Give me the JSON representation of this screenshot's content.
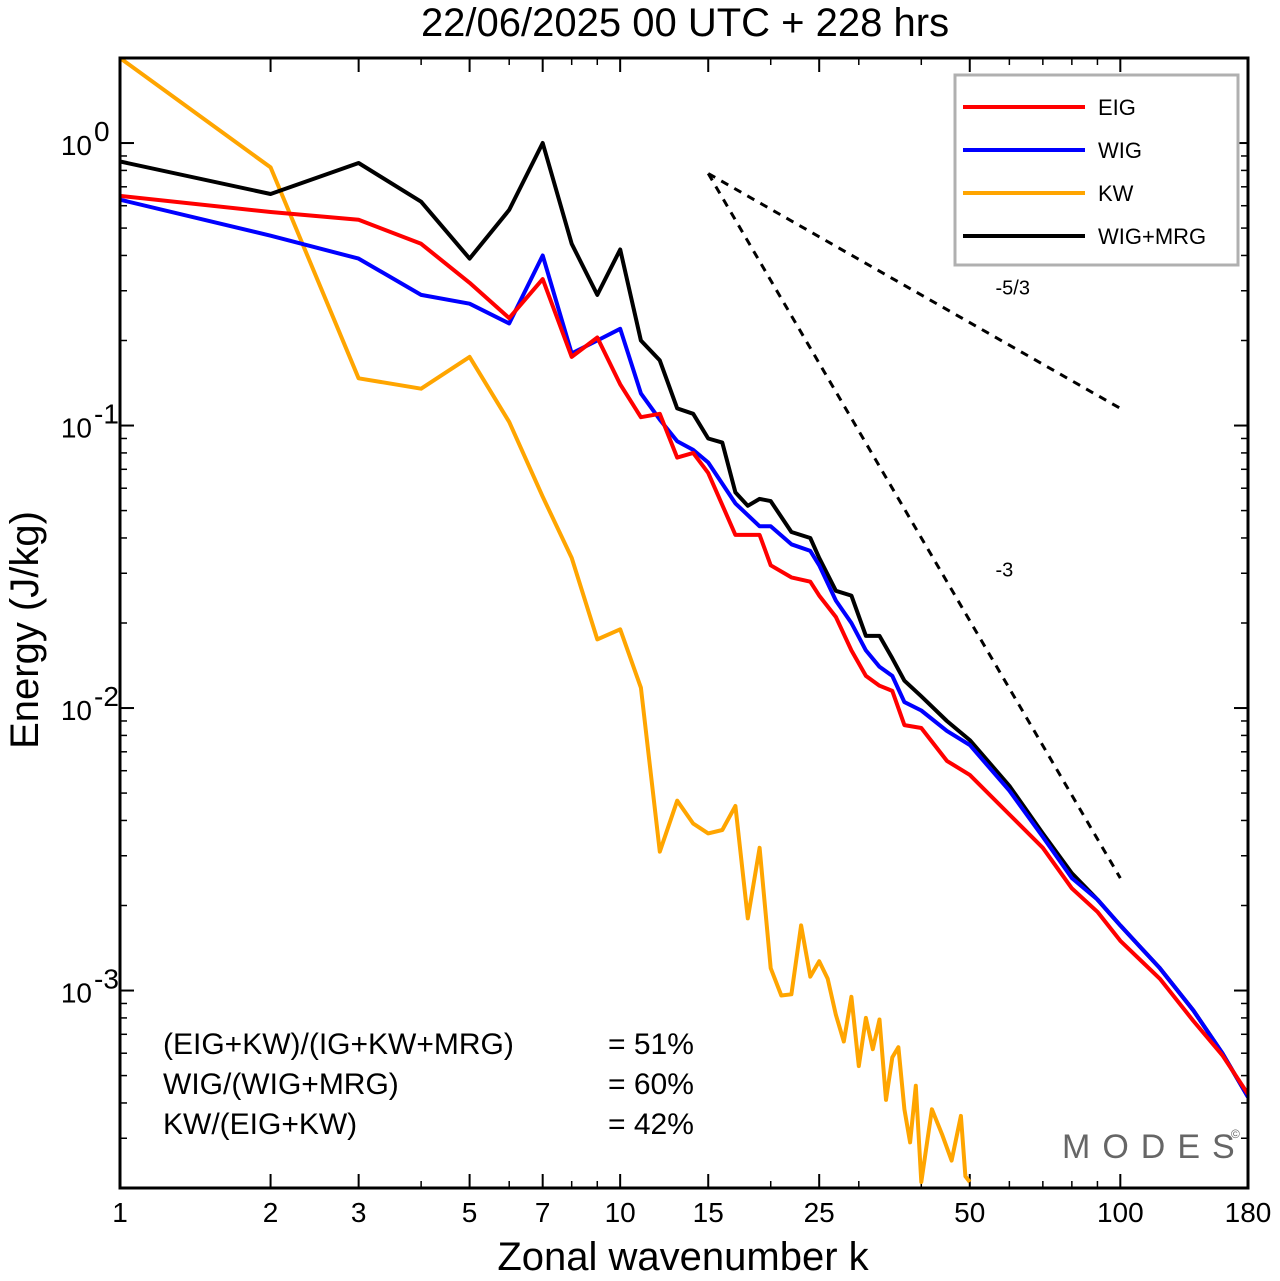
{
  "chart_data": {
    "type": "line",
    "title": "22/06/2025  00 UTC  + 228 hrs",
    "xlabel": "Zonal wavenumber k",
    "ylabel": "Energy (J/kg)",
    "xscale": "log",
    "yscale": "log",
    "xlim": [
      1,
      180
    ],
    "ylim": [
      0.0002,
      2.0
    ],
    "grid": false,
    "legend_position": "top-right",
    "xticks": [
      1,
      2,
      3,
      5,
      7,
      10,
      15,
      25,
      50,
      100,
      180
    ],
    "xtick_labels": [
      "1",
      "2",
      "3",
      "5",
      "7",
      "10",
      "15",
      "25",
      "50",
      "100",
      "180"
    ],
    "yticks": [
      0.001,
      0.01,
      0.1,
      1
    ],
    "ytick_labels": [
      {
        "base": "10",
        "exp": "-3"
      },
      {
        "base": "10",
        "exp": "-2"
      },
      {
        "base": "10",
        "exp": "-1"
      },
      {
        "base": "10",
        "exp": "0"
      }
    ],
    "series": [
      {
        "name": "EIG",
        "color": "#ff0000",
        "x": [
          1,
          2,
          3,
          4,
          5,
          6,
          7,
          8,
          9,
          10,
          11,
          12,
          13,
          14,
          15,
          17,
          19,
          20,
          22,
          24,
          25,
          27,
          29,
          31,
          33,
          35,
          37,
          40,
          45,
          50,
          60,
          70,
          80,
          90,
          100,
          120,
          140,
          160,
          180
        ],
        "y": [
          0.65,
          0.57,
          0.535,
          0.44,
          0.32,
          0.24,
          0.33,
          0.175,
          0.205,
          0.14,
          0.107,
          0.11,
          0.077,
          0.08,
          0.068,
          0.041,
          0.041,
          0.032,
          0.029,
          0.028,
          0.025,
          0.021,
          0.016,
          0.013,
          0.012,
          0.0115,
          0.0087,
          0.0085,
          0.0065,
          0.0058,
          0.0042,
          0.0032,
          0.0023,
          0.0019,
          0.0015,
          0.0011,
          0.00078,
          0.00059,
          0.00043
        ]
      },
      {
        "name": "WIG",
        "color": "#0000ff",
        "x": [
          1,
          2,
          3,
          4,
          5,
          6,
          7,
          8,
          9,
          10,
          11,
          12,
          13,
          14,
          15,
          17,
          19,
          20,
          22,
          24,
          25,
          27,
          29,
          31,
          33,
          35,
          37,
          40,
          45,
          50,
          60,
          70,
          80,
          90,
          100,
          120,
          140,
          160,
          180
        ],
        "y": [
          0.63,
          0.47,
          0.39,
          0.29,
          0.27,
          0.23,
          0.4,
          0.18,
          0.2,
          0.22,
          0.13,
          0.105,
          0.088,
          0.082,
          0.074,
          0.053,
          0.044,
          0.044,
          0.038,
          0.036,
          0.032,
          0.024,
          0.02,
          0.016,
          0.014,
          0.013,
          0.0105,
          0.0098,
          0.0083,
          0.0074,
          0.0051,
          0.0035,
          0.0025,
          0.0021,
          0.0017,
          0.0012,
          0.00085,
          0.0006,
          0.00042
        ]
      },
      {
        "name": "KW",
        "color": "#ffa500",
        "x": [
          1,
          2,
          3,
          4,
          5,
          6,
          7,
          8,
          9,
          10,
          11,
          12,
          13,
          14,
          15,
          16,
          17,
          18,
          19,
          20,
          21,
          22,
          23,
          24,
          25,
          26,
          27,
          28,
          29,
          30,
          31,
          32,
          33,
          34,
          35,
          36,
          37,
          38,
          39,
          40,
          42,
          44,
          46,
          48,
          49,
          50
        ],
        "y": [
          2.0,
          0.82,
          0.147,
          0.135,
          0.175,
          0.103,
          0.056,
          0.034,
          0.0175,
          0.019,
          0.0118,
          0.0031,
          0.0047,
          0.0039,
          0.0036,
          0.0037,
          0.0045,
          0.0018,
          0.0032,
          0.0012,
          0.00096,
          0.00097,
          0.0017,
          0.00112,
          0.00127,
          0.0011,
          0.00082,
          0.00066,
          0.00095,
          0.00054,
          0.0008,
          0.00062,
          0.00079,
          0.00041,
          0.00058,
          0.00063,
          0.00038,
          0.00029,
          0.00046,
          0.00021,
          0.00038,
          0.00031,
          0.00025,
          0.00036,
          0.00022,
          0.00021
        ]
      },
      {
        "name": "WIG+MRG",
        "color": "#000000",
        "x": [
          1,
          2,
          3,
          4,
          5,
          6,
          7,
          8,
          9,
          10,
          11,
          12,
          13,
          14,
          15,
          16,
          17,
          18,
          19,
          20,
          22,
          24,
          25,
          27,
          29,
          31,
          33,
          35,
          37,
          40,
          45,
          50,
          60,
          70,
          80,
          90,
          100,
          120,
          140,
          160,
          180
        ],
        "y": [
          0.86,
          0.66,
          0.85,
          0.62,
          0.39,
          0.58,
          1.0,
          0.44,
          0.29,
          0.42,
          0.2,
          0.17,
          0.115,
          0.11,
          0.09,
          0.087,
          0.058,
          0.052,
          0.055,
          0.054,
          0.042,
          0.04,
          0.034,
          0.026,
          0.025,
          0.018,
          0.018,
          0.015,
          0.0125,
          0.011,
          0.009,
          0.0077,
          0.0053,
          0.0036,
          0.0026,
          0.0021,
          0.0017,
          0.0012,
          0.00085,
          0.0006,
          0.00042
        ]
      }
    ],
    "reference_lines": [
      {
        "label": "-5/3",
        "x": [
          15,
          100
        ],
        "y": [
          0.78,
          0.115
        ],
        "style": "dashed",
        "color": "#000000"
      },
      {
        "label": "-3",
        "x": [
          15,
          100
        ],
        "y": [
          0.78,
          0.0025
        ],
        "style": "dashed",
        "color": "#000000"
      }
    ],
    "annotations": [
      {
        "label": "(EIG+KW)/(IG+KW+MRG)",
        "value": "= 51%"
      },
      {
        "label": "WIG/(WIG+MRG)",
        "value": "= 60%"
      },
      {
        "label": "KW/(EIG+KW)",
        "value": "= 42%"
      }
    ],
    "logo": "MODES",
    "logo_mark": "©"
  }
}
